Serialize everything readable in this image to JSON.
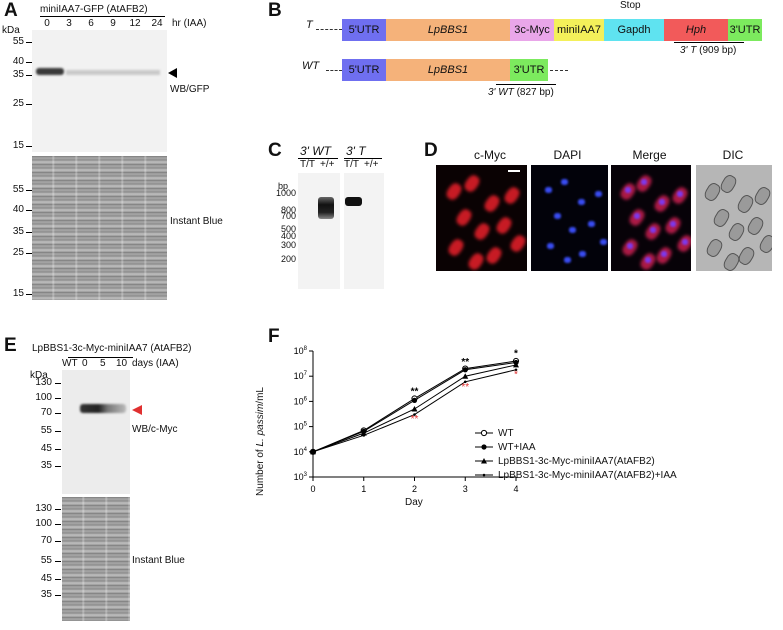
{
  "panels": {
    "a": {
      "letter": "A",
      "header": "miniIAA7-GFP (AtAFB2)",
      "kda": "kDa",
      "lanes": [
        "0",
        "3",
        "6",
        "9",
        "12",
        "24"
      ],
      "lane_unit": "hr (IAA)",
      "markers_top": [
        "55",
        "40",
        "35",
        "25",
        "15"
      ],
      "markers_bottom": [
        "55",
        "40",
        "35",
        "25",
        "15"
      ],
      "blot_label": "WB/GFP",
      "stain_label": "Instant Blue"
    },
    "b": {
      "letter": "B",
      "stop": "Stop",
      "t_label": "T",
      "wt_label": "WT",
      "t_boxes": [
        {
          "label": "5'UTR",
          "color": "#6f6ff0"
        },
        {
          "label": "LpBBS1",
          "color": "#f5b27a"
        },
        {
          "label": "3c-Myc",
          "color": "#e9a6e9"
        },
        {
          "label": "miniIAA7",
          "color": "#f4f05a"
        },
        {
          "label": "Gapdh",
          "color": "#5fe3f0"
        },
        {
          "label": "Hph",
          "color": "#f25a5a"
        },
        {
          "label": "3'UTR",
          "color": "#7cea5e"
        }
      ],
      "wt_boxes": [
        {
          "label": "5'UTR",
          "color": "#6f6ff0"
        },
        {
          "label": "LpBBS1",
          "color": "#f5b27a"
        },
        {
          "label": "3'UTR",
          "color": "#7cea5e"
        }
      ],
      "t_probe": "3' T",
      "t_probe_size": "(909 bp)",
      "wt_probe": "3' WT",
      "wt_probe_size": "(827 bp)"
    },
    "c": {
      "letter": "C",
      "title_wt": "3' WT",
      "title_t": "3' T",
      "genotypes": [
        "T/T",
        "+/+",
        "T/T",
        "+/+"
      ],
      "bp": "bp",
      "markers": [
        "1000",
        "800",
        "700",
        "500",
        "400",
        "300",
        "200"
      ]
    },
    "d": {
      "letter": "D",
      "titles": [
        "c-Myc",
        "DAPI",
        "Merge",
        "DIC"
      ]
    },
    "e": {
      "letter": "E",
      "header": "LpBBS1-3c-Myc-miniIAA7 (AtAFB2)",
      "lanes": [
        "WT",
        "0",
        "5",
        "10"
      ],
      "lane_unit": "days (IAA)",
      "kda": "kDa",
      "markers_top": [
        "130",
        "100",
        "70",
        "55",
        "45",
        "35"
      ],
      "markers_bottom": [
        "130",
        "100",
        "70",
        "55",
        "45",
        "35"
      ],
      "blot_label": "WB/c-Myc",
      "stain_label": "Instant Blue",
      "arrow_color": "#e03030"
    },
    "f": {
      "letter": "F",
      "significance": {
        "day2_black": "**",
        "day2_red": "**",
        "day3_black": "**",
        "day3_red": "**",
        "day4_black": "*",
        "day4_red": "*"
      }
    }
  },
  "chart_data": {
    "type": "line",
    "title": "",
    "xlabel": "Day",
    "ylabel_prefix": "Number of ",
    "ylabel_italic": "L. passim",
    "ylabel_suffix": "/mL",
    "x": [
      0,
      1,
      2,
      3,
      4
    ],
    "xlim": [
      0,
      4
    ],
    "ylim_log10": [
      3,
      8
    ],
    "y_scale": "log",
    "y_ticks": [
      "10^3",
      "10^4",
      "10^5",
      "10^6",
      "10^7",
      "10^8"
    ],
    "legend_position": "right",
    "series": [
      {
        "name": "WT",
        "marker": "open-circle",
        "values": [
          10000,
          70000,
          1300000,
          20000000,
          40000000
        ]
      },
      {
        "name": "WT+IAA",
        "marker": "filled-circle",
        "values": [
          10000,
          65000,
          1100000,
          18000000,
          35000000
        ]
      },
      {
        "name": "LpBBS1-3c-Myc-miniIAA7(AtAFB2)",
        "marker": "triangle",
        "values": [
          10000,
          55000,
          500000,
          10000000,
          28000000
        ]
      },
      {
        "name": "LpBBS1-3c-Myc-miniIAA7(AtAFB2)+IAA",
        "marker": "small-dot",
        "values": [
          10000,
          45000,
          300000,
          6000000,
          18000000
        ]
      }
    ]
  }
}
